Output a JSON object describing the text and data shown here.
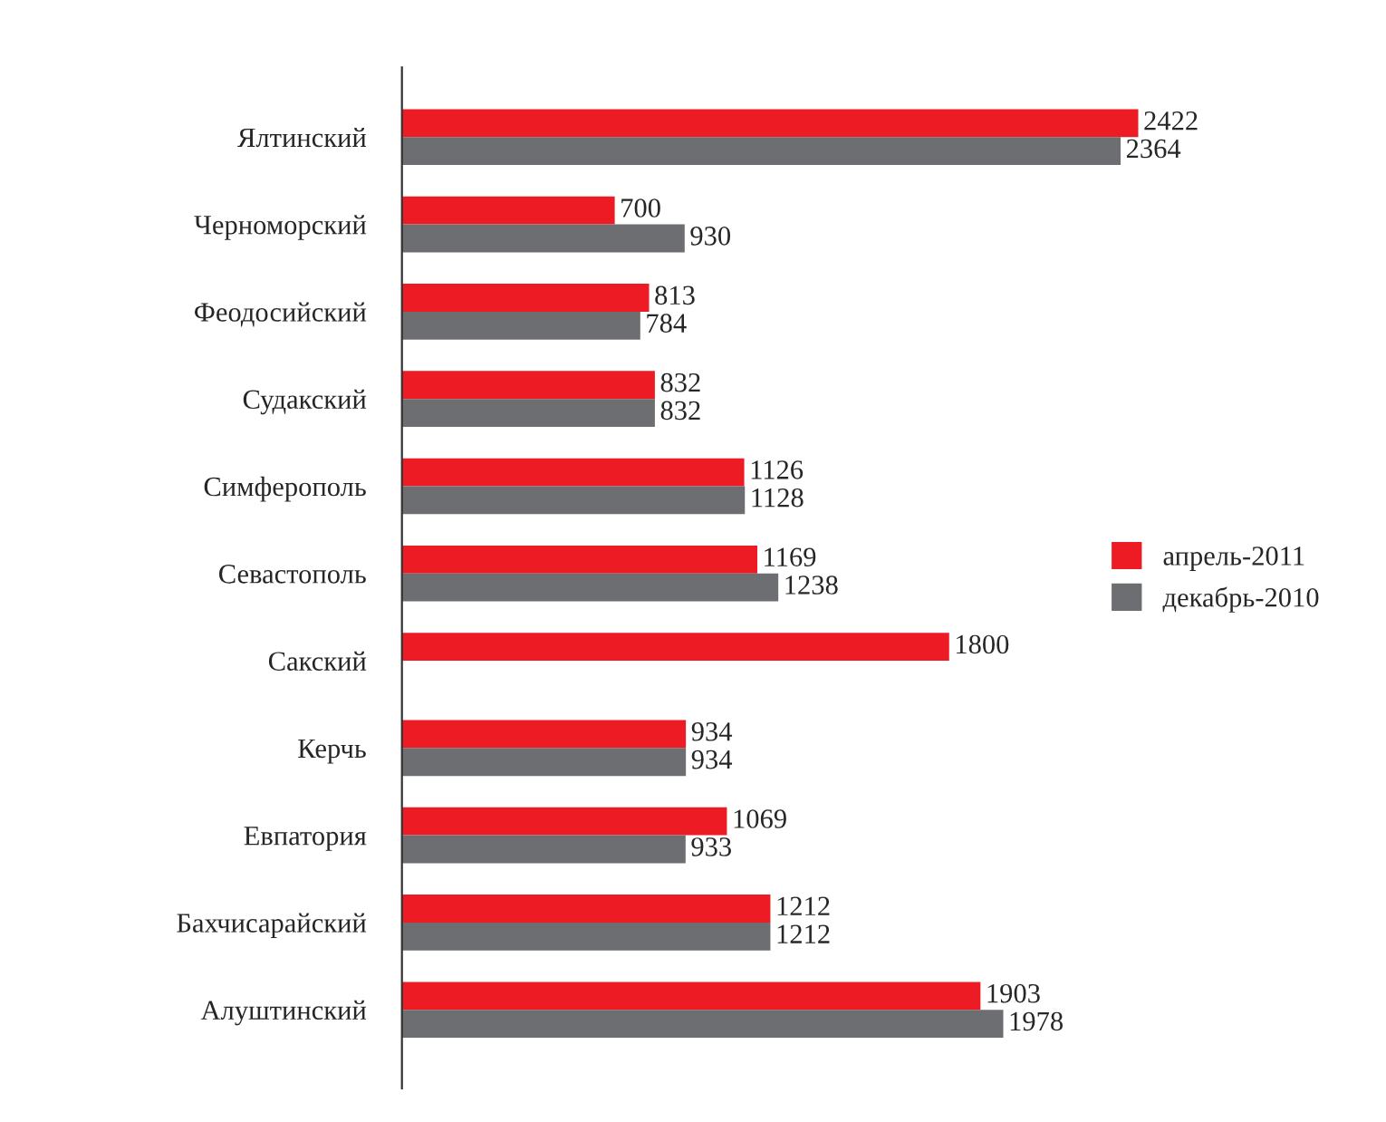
{
  "chart_data": {
    "type": "bar",
    "orientation": "horizontal",
    "data_labels": true,
    "legend": "right",
    "tick_labels": "y",
    "grid": false,
    "categories": [
      "Ялтинский",
      "Черноморский",
      "Феодосийский",
      "Судакский",
      "Симферополь",
      "Севастополь",
      "Сакский",
      "Керчь",
      "Евпатория",
      "Бахчисарайский",
      "Алуштинский"
    ],
    "series": [
      {
        "name": "апрель-2011",
        "color": "#ed1c24",
        "values": [
          2422,
          700,
          813,
          832,
          1126,
          1169,
          1800,
          934,
          1069,
          1212,
          1903
        ]
      },
      {
        "name": "декабрь-2010",
        "color": "#6d6e71",
        "values": [
          2364,
          930,
          784,
          832,
          1128,
          1238,
          null,
          934,
          933,
          1212,
          1978
        ]
      }
    ]
  }
}
